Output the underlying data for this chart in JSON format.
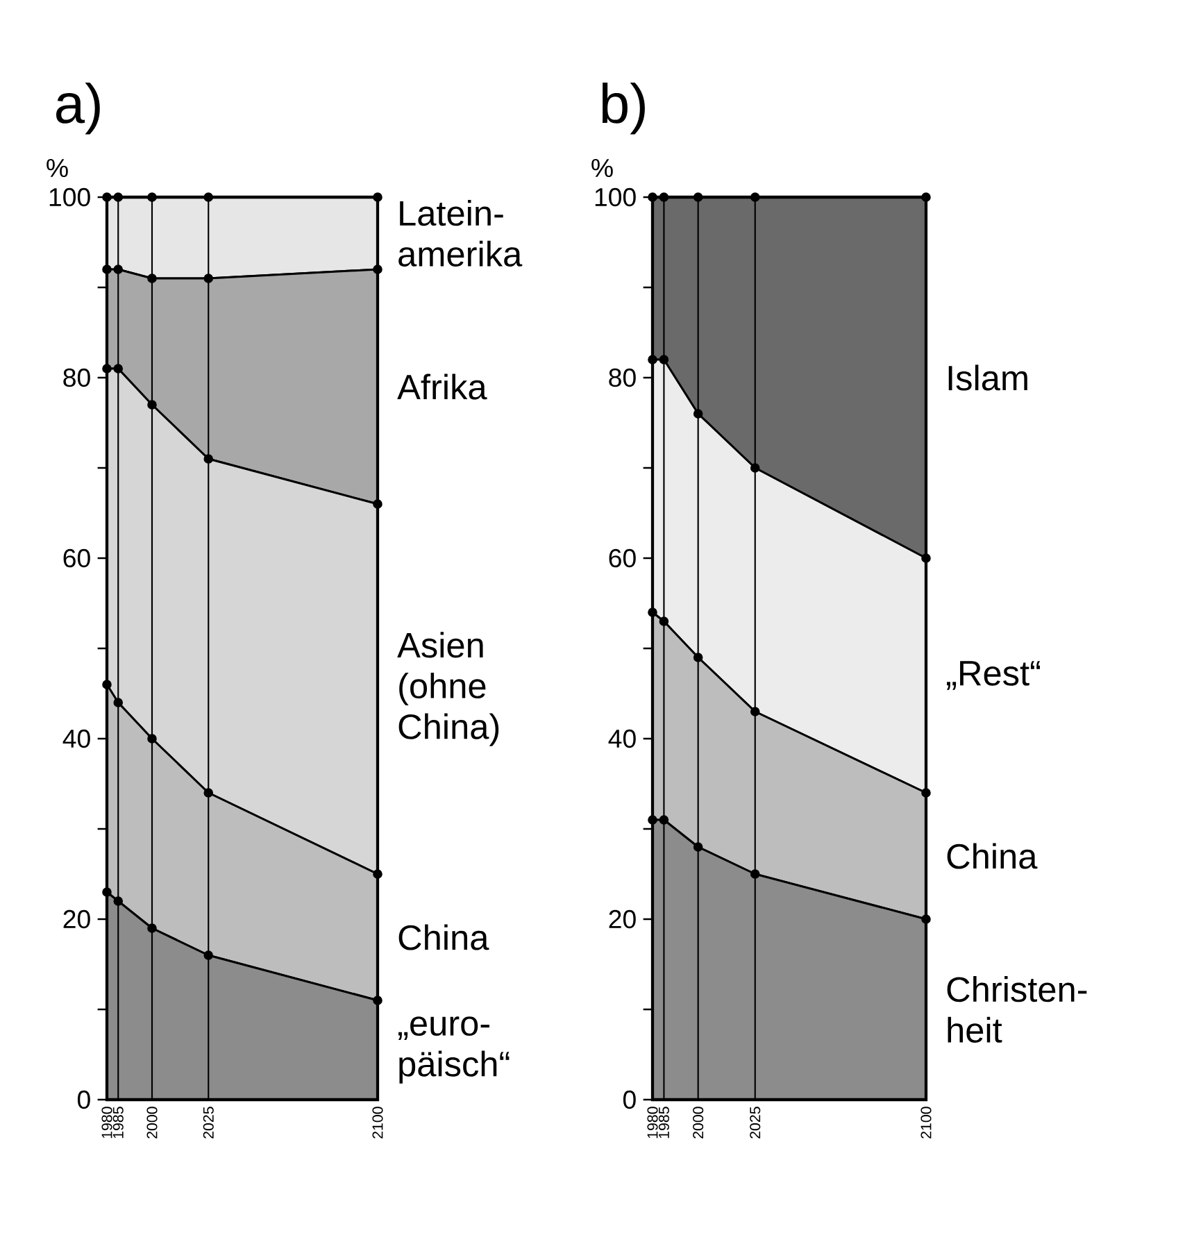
{
  "chart_data": [
    {
      "type": "area",
      "stacked": true,
      "title": "a)",
      "ylabel": "%",
      "x": [
        1980,
        1985,
        2000,
        2025,
        2100
      ],
      "xlim": [
        1980,
        2100
      ],
      "xticks": [
        1980,
        1985,
        2000,
        2025,
        2100
      ],
      "ylim": [
        0,
        100
      ],
      "yticks": [
        0,
        {
          "value": 10,
          "label": null
        },
        20,
        {
          "value": 30,
          "label": null
        },
        40,
        {
          "value": 50,
          "label": null
        },
        60,
        {
          "value": 70,
          "label": null
        },
        80,
        {
          "value": 90,
          "label": null
        },
        100
      ],
      "grid": "x",
      "legend": false,
      "marker": "circle",
      "series": [
        {
          "name": "„euro-päisch“",
          "color": "#8c8c8c",
          "values": [
            23,
            22,
            19,
            16,
            11
          ]
        },
        {
          "name": "China",
          "color": "#bdbdbd",
          "values": [
            23,
            22,
            21,
            18,
            14
          ]
        },
        {
          "name": "Asien (ohne China)",
          "color": "#d6d6d6",
          "values": [
            35,
            37,
            37,
            37,
            41
          ]
        },
        {
          "name": "Afrika",
          "color": "#a8a8a8",
          "values": [
            11,
            11,
            14,
            20,
            26
          ]
        },
        {
          "name": "Latein-amerika",
          "color": "#e6e6e6",
          "values": [
            8,
            8,
            9,
            9,
            8
          ]
        }
      ]
    },
    {
      "type": "area",
      "stacked": true,
      "title": "b)",
      "ylabel": "%",
      "x": [
        1980,
        1985,
        2000,
        2025,
        2100
      ],
      "xlim": [
        1980,
        2100
      ],
      "xticks": [
        1980,
        1985,
        2000,
        2025,
        2100
      ],
      "ylim": [
        0,
        100
      ],
      "yticks": [
        0,
        {
          "value": 10,
          "label": null
        },
        20,
        {
          "value": 30,
          "label": null
        },
        40,
        {
          "value": 50,
          "label": null
        },
        60,
        {
          "value": 70,
          "label": null
        },
        80,
        {
          "value": 90,
          "label": null
        },
        100
      ],
      "grid": "x",
      "legend": false,
      "marker": "circle",
      "series": [
        {
          "name": "Christen-heit",
          "color": "#8c8c8c",
          "values": [
            31,
            31,
            28,
            25,
            20
          ]
        },
        {
          "name": "China",
          "color": "#bdbdbd",
          "values": [
            23,
            22,
            21,
            18,
            14
          ]
        },
        {
          "name": "„Rest“",
          "color": "#ececec",
          "values": [
            28,
            29,
            27,
            27,
            26
          ]
        },
        {
          "name": "Islam",
          "color": "#6a6a6a",
          "values": [
            18,
            18,
            24,
            30,
            40
          ]
        }
      ]
    }
  ]
}
